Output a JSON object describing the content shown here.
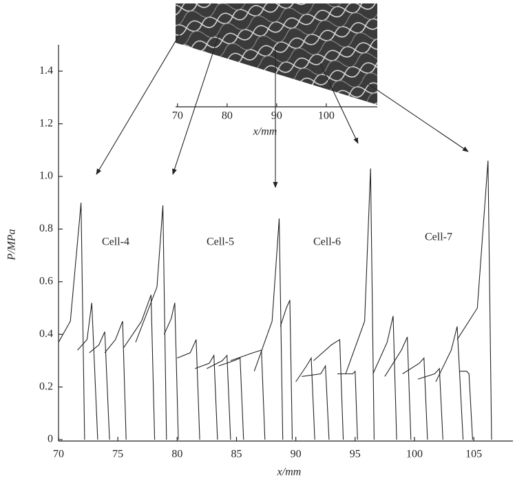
{
  "chart_data": {
    "type": "line",
    "xlabel": "x/mm",
    "ylabel": "P/MPa",
    "xlim": [
      70,
      108.3
    ],
    "ylim": [
      0,
      1.5
    ],
    "xticks": [
      70,
      75,
      80,
      85,
      90,
      95,
      100,
      105
    ],
    "yticks": [
      0,
      0.2,
      0.4,
      0.6,
      0.8,
      {
        "value": 1,
        "label": "1.0"
      },
      1.2,
      1.4
    ],
    "color": "#222222",
    "annotations": [
      "Cell-4",
      "Cell-5",
      "Cell-6",
      "Cell-7"
    ],
    "inset": {
      "xlabel": "x/mm",
      "xlim": [
        69.6,
        110.3
      ],
      "xticks": [
        70,
        80,
        90,
        100
      ]
    },
    "series": [
      {
        "x": [
          70,
          71,
          71.9,
          72.2
        ],
        "values": [
          0.37,
          0.45,
          0.9,
          0
        ]
      },
      {
        "x": [
          71.6,
          72.4,
          72.8,
          73.3
        ],
        "values": [
          0.34,
          0.38,
          0.52,
          0
        ]
      },
      {
        "x": [
          72.6,
          73.4,
          73.9,
          74.3
        ],
        "values": [
          0.33,
          0.36,
          0.41,
          0
        ]
      },
      {
        "x": [
          73.9,
          74.8,
          75.4,
          75.7
        ],
        "values": [
          0.33,
          0.38,
          0.45,
          0
        ]
      },
      {
        "x": [
          75.5,
          77,
          77.8,
          78.1
        ],
        "values": [
          0.35,
          0.45,
          0.55,
          0
        ]
      },
      {
        "x": [
          76.5,
          78.3,
          78.8,
          79.1
        ],
        "values": [
          0.37,
          0.58,
          0.89,
          0
        ]
      },
      {
        "x": [
          78.9,
          79.5,
          79.8,
          80.1
        ],
        "values": [
          0.4,
          0.46,
          0.52,
          0
        ]
      },
      {
        "x": [
          80,
          81.1,
          81.6,
          81.9
        ],
        "values": [
          0.31,
          0.33,
          0.38,
          0
        ]
      },
      {
        "x": [
          81.5,
          82.7,
          83.1,
          83.4
        ],
        "values": [
          0.27,
          0.29,
          0.32,
          0
        ]
      },
      {
        "x": [
          82.5,
          83.8,
          84.2,
          84.5
        ],
        "values": [
          0.27,
          0.3,
          0.32,
          0
        ]
      },
      {
        "x": [
          83.5,
          84.8,
          85.3,
          85.6
        ],
        "values": [
          0.28,
          0.3,
          0.31,
          0
        ]
      },
      {
        "x": [
          84.5,
          86.4,
          87.1,
          87.4
        ],
        "values": [
          0.3,
          0.33,
          0.34,
          0
        ]
      },
      {
        "x": [
          86.5,
          88,
          88.6,
          88.9
        ],
        "values": [
          0.26,
          0.45,
          0.84,
          0
        ]
      },
      {
        "x": [
          88.7,
          89.2,
          89.5,
          89.7
        ],
        "values": [
          0.43,
          0.5,
          0.53,
          0
        ]
      },
      {
        "x": [
          90,
          90.9,
          91.3,
          91.6
        ],
        "values": [
          0.22,
          0.28,
          0.31,
          0
        ]
      },
      {
        "x": [
          90.5,
          92.1,
          92.5,
          92.8
        ],
        "values": [
          0.24,
          0.25,
          0.28,
          0
        ]
      },
      {
        "x": [
          91.5,
          93,
          93.7,
          94
        ],
        "values": [
          0.3,
          0.36,
          0.38,
          0
        ]
      },
      {
        "x": [
          93.5,
          94.8,
          95,
          95.2
        ],
        "values": [
          0.25,
          0.25,
          0.26,
          0
        ]
      },
      {
        "x": [
          94.2,
          95.8,
          96.3,
          96.6
        ],
        "values": [
          0.25,
          0.45,
          1.03,
          0
        ]
      },
      {
        "x": [
          96.5,
          97.7,
          98.2,
          98.5
        ],
        "values": [
          0.25,
          0.37,
          0.47,
          0
        ]
      },
      {
        "x": [
          97.5,
          98.9,
          99.4,
          99.7
        ],
        "values": [
          0.24,
          0.34,
          0.39,
          0
        ]
      },
      {
        "x": [
          99,
          100.4,
          100.8,
          101.1
        ],
        "values": [
          0.25,
          0.29,
          0.31,
          0
        ]
      },
      {
        "x": [
          100.3,
          101.7,
          102.1,
          102.4
        ],
        "values": [
          0.23,
          0.25,
          0.27,
          0
        ]
      },
      {
        "x": [
          101.8,
          103.1,
          103.6,
          104.1
        ],
        "values": [
          0.22,
          0.34,
          0.43,
          0
        ]
      },
      {
        "x": [
          103.8,
          104.4,
          104.6,
          104.9
        ],
        "values": [
          0.26,
          0.26,
          0.25,
          0
        ]
      },
      {
        "x": [
          103.6,
          105.3,
          106.2,
          106.5
        ],
        "values": [
          0.38,
          0.5,
          1.06,
          0
        ]
      }
    ]
  }
}
